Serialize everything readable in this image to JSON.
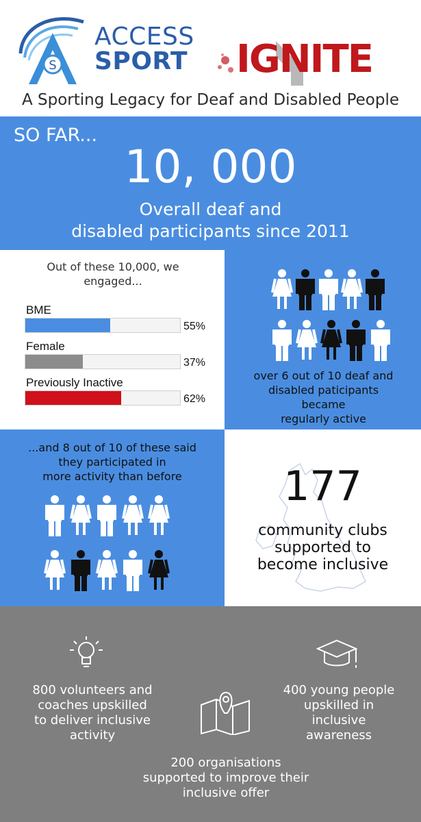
{
  "header": {
    "access_sport_line1": "ACCESS",
    "access_sport_line2": "SPORT",
    "access_sport_badge_letter": "S",
    "ignite_logo": "IGNITE",
    "tagline": "A Sporting Legacy for Deaf and Disabled People"
  },
  "hero": {
    "so_far": "SO FAR...",
    "big_number": "10, 000",
    "label_line1": "Overall deaf and",
    "label_line2": "disabled  participants since 2011"
  },
  "engagement": {
    "intro_line1": "Out of these 10,000, we",
    "intro_line2": "engaged...",
    "bars": [
      {
        "label": "BME",
        "value": 55,
        "pct_label": "55%",
        "color": "#4a8de0"
      },
      {
        "label": "Female",
        "value": 37,
        "pct_label": "37%",
        "color": "#8c8c8c"
      },
      {
        "label": "Previously Inactive",
        "value": 62,
        "pct_label": "62%",
        "color": "#d0101a"
      }
    ]
  },
  "regularly_active": {
    "line1": "over 6 out of 10 deaf and",
    "line2": "disabled paticipants",
    "line3": "became",
    "line4": "regularly active"
  },
  "more_activity": {
    "line1": "...and 8 out of 10 of these said",
    "line2": "they participated in",
    "line3": "more activity than before"
  },
  "clubs": {
    "number": "177",
    "line1": "community clubs",
    "line2": "supported to",
    "line3": "become inclusive"
  },
  "stats": {
    "volunteers_line1": "800 volunteers and",
    "volunteers_line2": "coaches upskilled",
    "volunteers_line3": "to deliver inclusive",
    "volunteers_line4": "activity",
    "young_line1": "400 young people",
    "young_line2": "upskilled in",
    "young_line3": "inclusive",
    "young_line4": "awareness",
    "orgs_line1": "200 organisations",
    "orgs_line2": "supported to improve their",
    "orgs_line3": "inclusive offer"
  },
  "colors": {
    "blue": "#4a8de0",
    "grey": "#7f7f7f",
    "red": "#d0101a",
    "brand_blue": "#2a5ea8"
  }
}
